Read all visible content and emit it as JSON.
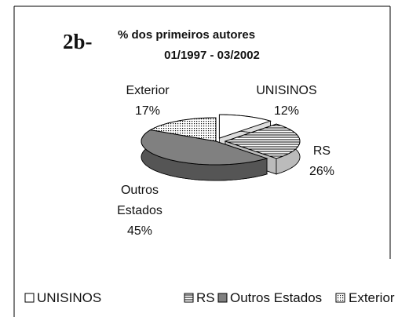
{
  "chart_data": {
    "type": "pie3d",
    "figure_label": "2b-",
    "title": "% dos primeiros autores",
    "subtitle": "01/1997 - 03/2002",
    "categories": [
      "UNISINOS",
      "RS",
      "Outros Estados",
      "Exterior"
    ],
    "values": [
      12,
      26,
      45,
      17
    ],
    "value_labels": [
      "12%",
      "26%",
      "45%",
      "17%"
    ],
    "colors": [
      "#ffffff",
      "#ffffff",
      "#808080",
      "#ffffff"
    ],
    "patterns": [
      "none",
      "horizontal-lines",
      "none",
      "dots"
    ],
    "legend": "bottom"
  }
}
